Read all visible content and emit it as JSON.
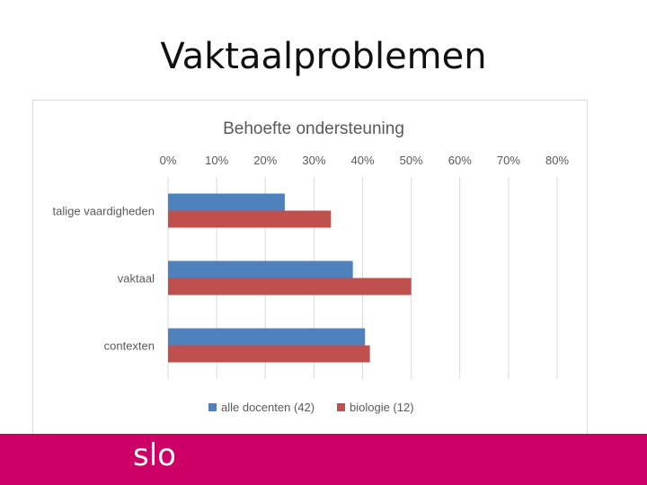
{
  "slide": {
    "title": "Vaktaalproblemen"
  },
  "footer": {
    "logo_text": "slo"
  },
  "colors": {
    "footer_bg": "#cc0066",
    "series_1": "#4f81bd",
    "series_2": "#c0504d"
  },
  "chart_data": {
    "type": "bar",
    "orientation": "horizontal",
    "title": "Behoefte ondersteuning",
    "categories": [
      "talige vaardigheden",
      "vaktaal",
      "contexten"
    ],
    "series": [
      {
        "name": "alle docenten (42)",
        "color": "#4f81bd",
        "values": [
          0.24,
          0.38,
          0.405
        ]
      },
      {
        "name": "biologie (12)",
        "color": "#c0504d",
        "values": [
          0.335,
          0.5,
          0.415
        ]
      }
    ],
    "xlim": [
      0,
      0.8
    ],
    "x_ticks": [
      "0%",
      "10%",
      "20%",
      "30%",
      "40%",
      "50%",
      "60%",
      "70%",
      "80%"
    ],
    "x_axis_position": "top",
    "grid": true,
    "legend_position": "bottom"
  }
}
